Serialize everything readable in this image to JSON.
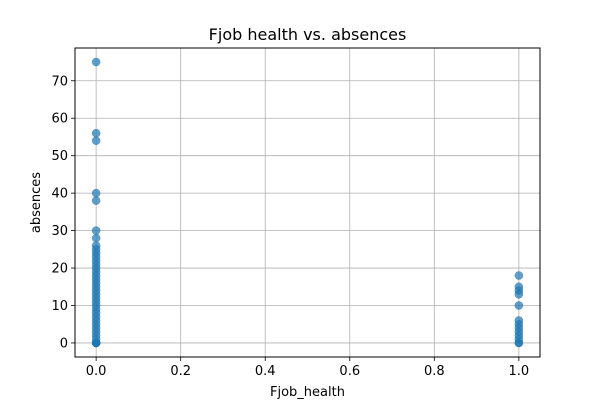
{
  "chart_data": {
    "type": "scatter",
    "title": "Fjob health vs. absences",
    "xlabel": "Fjob_health",
    "ylabel": "absences",
    "xlim": [
      -0.05,
      1.05
    ],
    "ylim": [
      -3.75,
      78.75
    ],
    "grid": true,
    "point_color": "#1f77b4",
    "x_ticks": [
      "0.0",
      "0.2",
      "0.4",
      "0.6",
      "0.8",
      "1.0"
    ],
    "y_ticks": [
      "0",
      "10",
      "20",
      "30",
      "40",
      "50",
      "60",
      "70"
    ],
    "series": [
      {
        "x": [
          0,
          0,
          0,
          0,
          0,
          0,
          0,
          0,
          0,
          0,
          0,
          0,
          0,
          0,
          0,
          0,
          0,
          0,
          0,
          0,
          0,
          0,
          0,
          0,
          0,
          0,
          0,
          0,
          0,
          0,
          0,
          0,
          0,
          0,
          0,
          0,
          0,
          0,
          0,
          1,
          1,
          1,
          1,
          1,
          1,
          1,
          1,
          1,
          1,
          1,
          1,
          1
        ],
        "y": [
          75,
          56,
          54,
          40,
          38,
          30,
          28,
          26,
          25,
          24,
          23,
          22,
          21,
          20,
          19,
          18,
          17,
          16,
          15,
          14,
          13,
          12,
          11,
          10,
          9,
          8,
          7,
          6,
          5,
          4,
          3,
          2,
          1,
          0,
          0,
          0,
          0,
          0,
          0,
          18,
          15,
          14,
          13,
          10,
          6,
          5,
          4,
          3,
          2,
          1,
          0,
          0
        ]
      }
    ]
  }
}
